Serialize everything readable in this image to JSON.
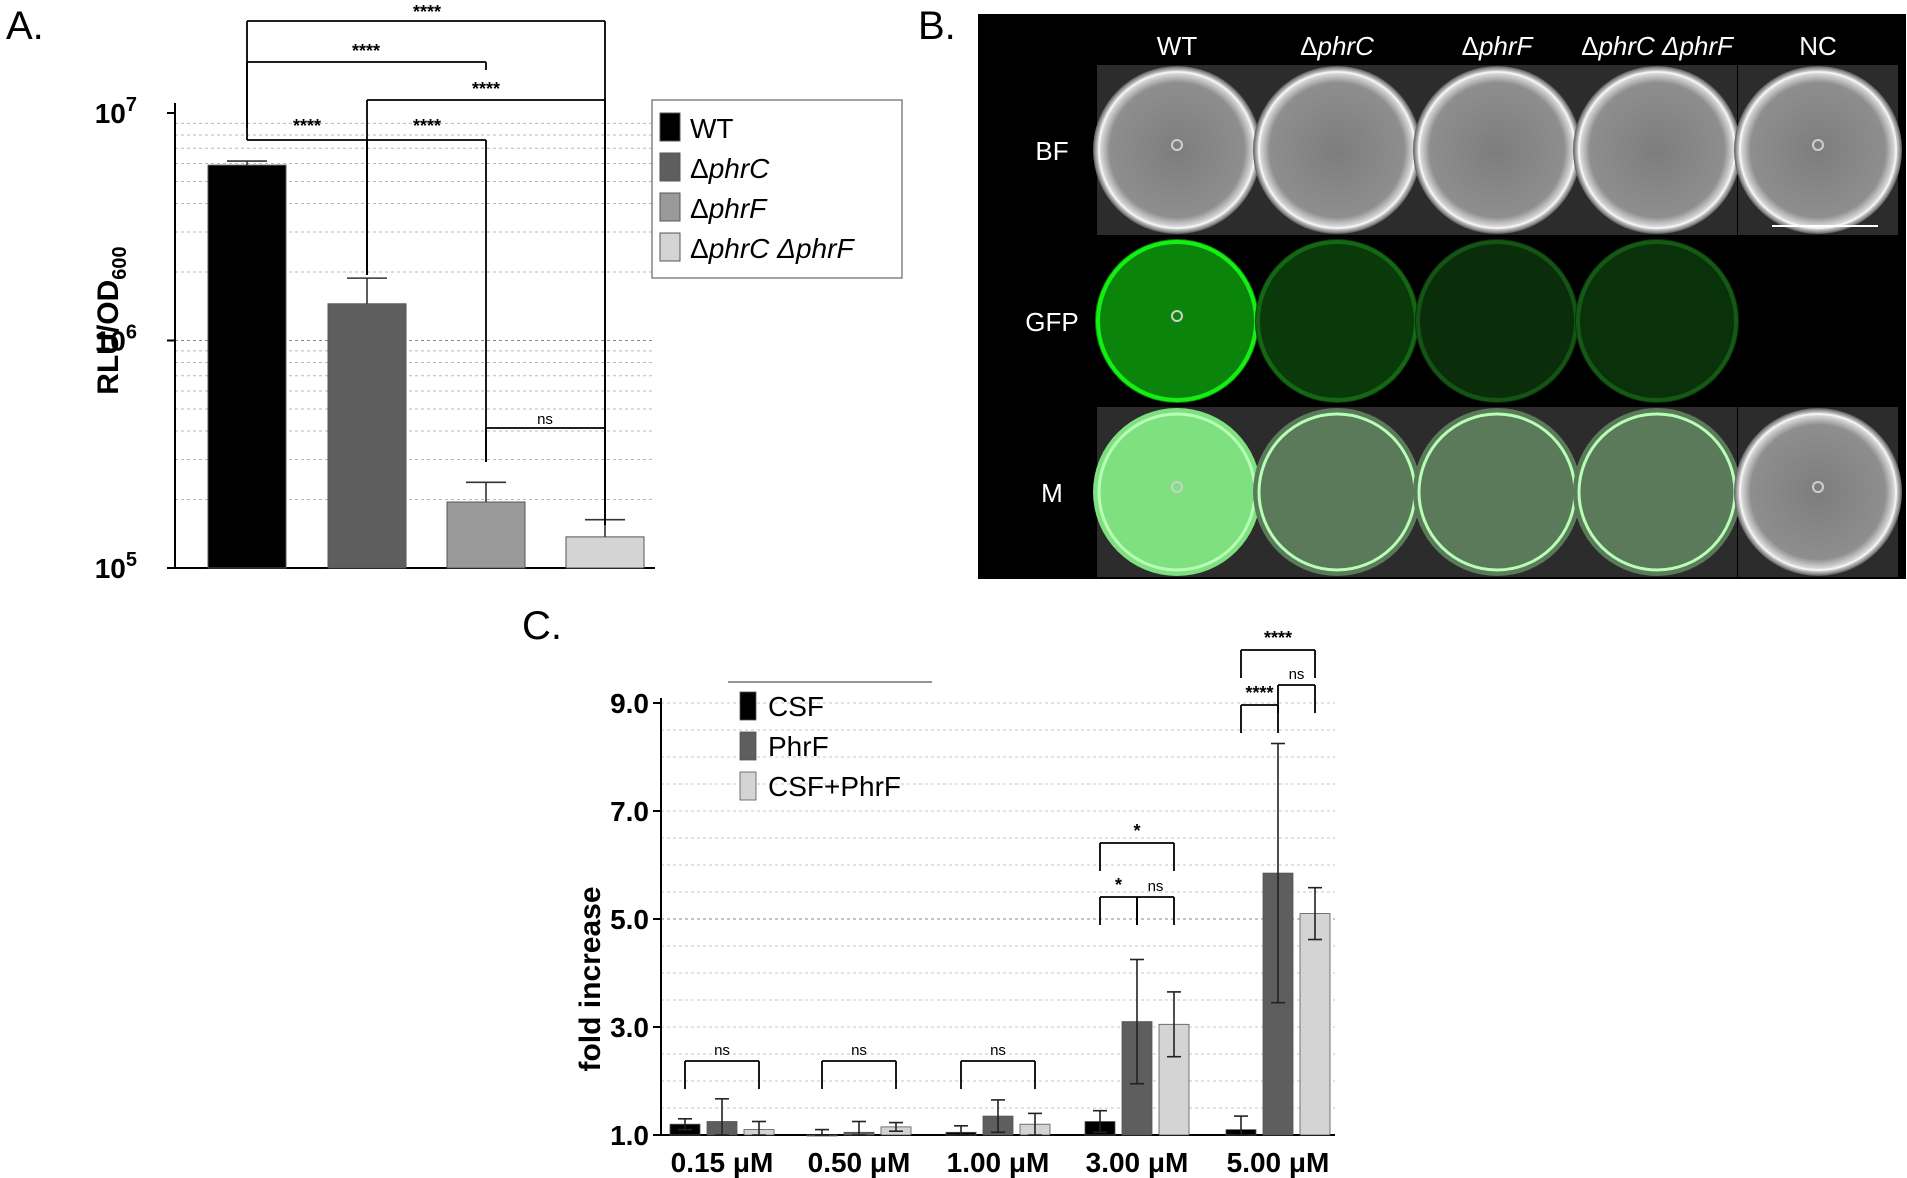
{
  "panels": {
    "a": "A.",
    "b": "B.",
    "c": "C."
  },
  "chart_data": [
    {
      "type": "bar",
      "panel": "A.",
      "ylabel": "RLU/OD600",
      "yscale": "log",
      "ylim": [
        100000,
        10000000
      ],
      "ytick_labels": {
        "e5": "10",
        "e6": "10",
        "e7": "10",
        "exp5": "5",
        "exp6": "6",
        "exp7": "7"
      },
      "grid": true,
      "legend_position": "right",
      "categories": [
        "WT",
        "ΔphrC",
        "ΔphrF",
        "ΔphrC ΔphrF"
      ],
      "legend": [
        {
          "prefix": "",
          "name": "WT",
          "color": "#000000",
          "italic": false
        },
        {
          "prefix": "Δ",
          "name": "phrC",
          "color": "#5e5e5e",
          "italic": true
        },
        {
          "prefix": "Δ",
          "name": "phrF",
          "color": "#9a9a9a",
          "italic": true
        },
        {
          "prefix": "Δ",
          "name": "phrC Δ",
          "name2": "phrF",
          "color": "#d4d4d4",
          "italic": true
        }
      ],
      "values": [
        5900000,
        1450000,
        195000,
        137000
      ],
      "errors_upper": [
        6150000,
        1880000,
        238000,
        163000
      ],
      "colors": [
        "#000000",
        "#5e5e5e",
        "#9a9a9a",
        "#d4d4d4"
      ],
      "significance": [
        {
          "pair": [
            "WT",
            "ΔphrC ΔphrF"
          ],
          "label": "****"
        },
        {
          "pair": [
            "WT",
            "ΔphrF"
          ],
          "label": "****"
        },
        {
          "pair": [
            "ΔphrC",
            "ΔphrC ΔphrF"
          ],
          "label": "****"
        },
        {
          "pair": [
            "WT",
            "ΔphrC"
          ],
          "label": "****"
        },
        {
          "pair": [
            "ΔphrC",
            "ΔphrF"
          ],
          "label": "****"
        },
        {
          "pair": [
            "ΔphrF",
            "ΔphrC ΔphrF"
          ],
          "label": "ns"
        }
      ]
    },
    {
      "type": "bar",
      "panel": "C.",
      "ylabel": "fold increase",
      "ylim": [
        1.0,
        9.0
      ],
      "yticks": [
        "1.0",
        "3.0",
        "5.0",
        "7.0",
        "9.0"
      ],
      "grid": true,
      "legend_position": "top-left",
      "categories": [
        "0.15 μM",
        "0.50 μM",
        "1.00 μM",
        "3.00 μM",
        "5.00 μM"
      ],
      "series": [
        {
          "name": "CSF",
          "color": "#000000",
          "values": [
            1.2,
            0.95,
            1.05,
            1.25,
            1.1
          ],
          "err": [
            0.1,
            0.15,
            0.12,
            0.2,
            0.25
          ]
        },
        {
          "name": "PhrF",
          "color": "#5e5e5e",
          "values": [
            1.25,
            1.05,
            1.35,
            3.1,
            5.85
          ],
          "err": [
            0.42,
            0.2,
            0.3,
            1.15,
            2.4
          ]
        },
        {
          "name": "CSF+PhrF",
          "color": "#d4d4d4",
          "values": [
            1.1,
            1.15,
            1.2,
            3.05,
            5.1
          ],
          "err": [
            0.15,
            0.08,
            0.2,
            0.6,
            0.48
          ]
        }
      ],
      "significance": [
        {
          "group": "0.15 μM",
          "pair": [
            "CSF",
            "CSF+PhrF"
          ],
          "label": "ns"
        },
        {
          "group": "0.50 μM",
          "pair": [
            "CSF",
            "CSF+PhrF"
          ],
          "label": "ns"
        },
        {
          "group": "1.00 μM",
          "pair": [
            "CSF",
            "CSF+PhrF"
          ],
          "label": "ns"
        },
        {
          "group": "3.00 μM",
          "pair": [
            "CSF",
            "PhrF"
          ],
          "label": "*"
        },
        {
          "group": "3.00 μM",
          "pair": [
            "PhrF",
            "CSF+PhrF"
          ],
          "label": "ns"
        },
        {
          "group": "3.00 μM",
          "pair": [
            "CSF",
            "CSF+PhrF"
          ],
          "label": "*"
        },
        {
          "group": "5.00 μM",
          "pair": [
            "CSF",
            "PhrF"
          ],
          "label": "****"
        },
        {
          "group": "5.00 μM",
          "pair": [
            "PhrF",
            "CSF+PhrF"
          ],
          "label": "ns"
        },
        {
          "group": "5.00 μM",
          "pair": [
            "CSF",
            "CSF+PhrF"
          ],
          "label": "****"
        }
      ]
    }
  ],
  "microscopy": {
    "columns": [
      {
        "prefix": "",
        "name": "WT",
        "italic": false
      },
      {
        "prefix": "Δ",
        "name": "phrC",
        "italic": true
      },
      {
        "prefix": "Δ",
        "name": "phrF",
        "italic": true
      },
      {
        "prefix": "Δ",
        "name": "phrC Δ",
        "name2": "phrF",
        "italic": true
      },
      {
        "prefix": "",
        "name": "NC",
        "italic": false
      }
    ],
    "rows": [
      "BF",
      "GFP",
      "M"
    ],
    "gfp_intensity": [
      1.0,
      0.32,
      0.22,
      0.25,
      0.0
    ],
    "background": "#000000",
    "bright_green": "#33dd33"
  }
}
